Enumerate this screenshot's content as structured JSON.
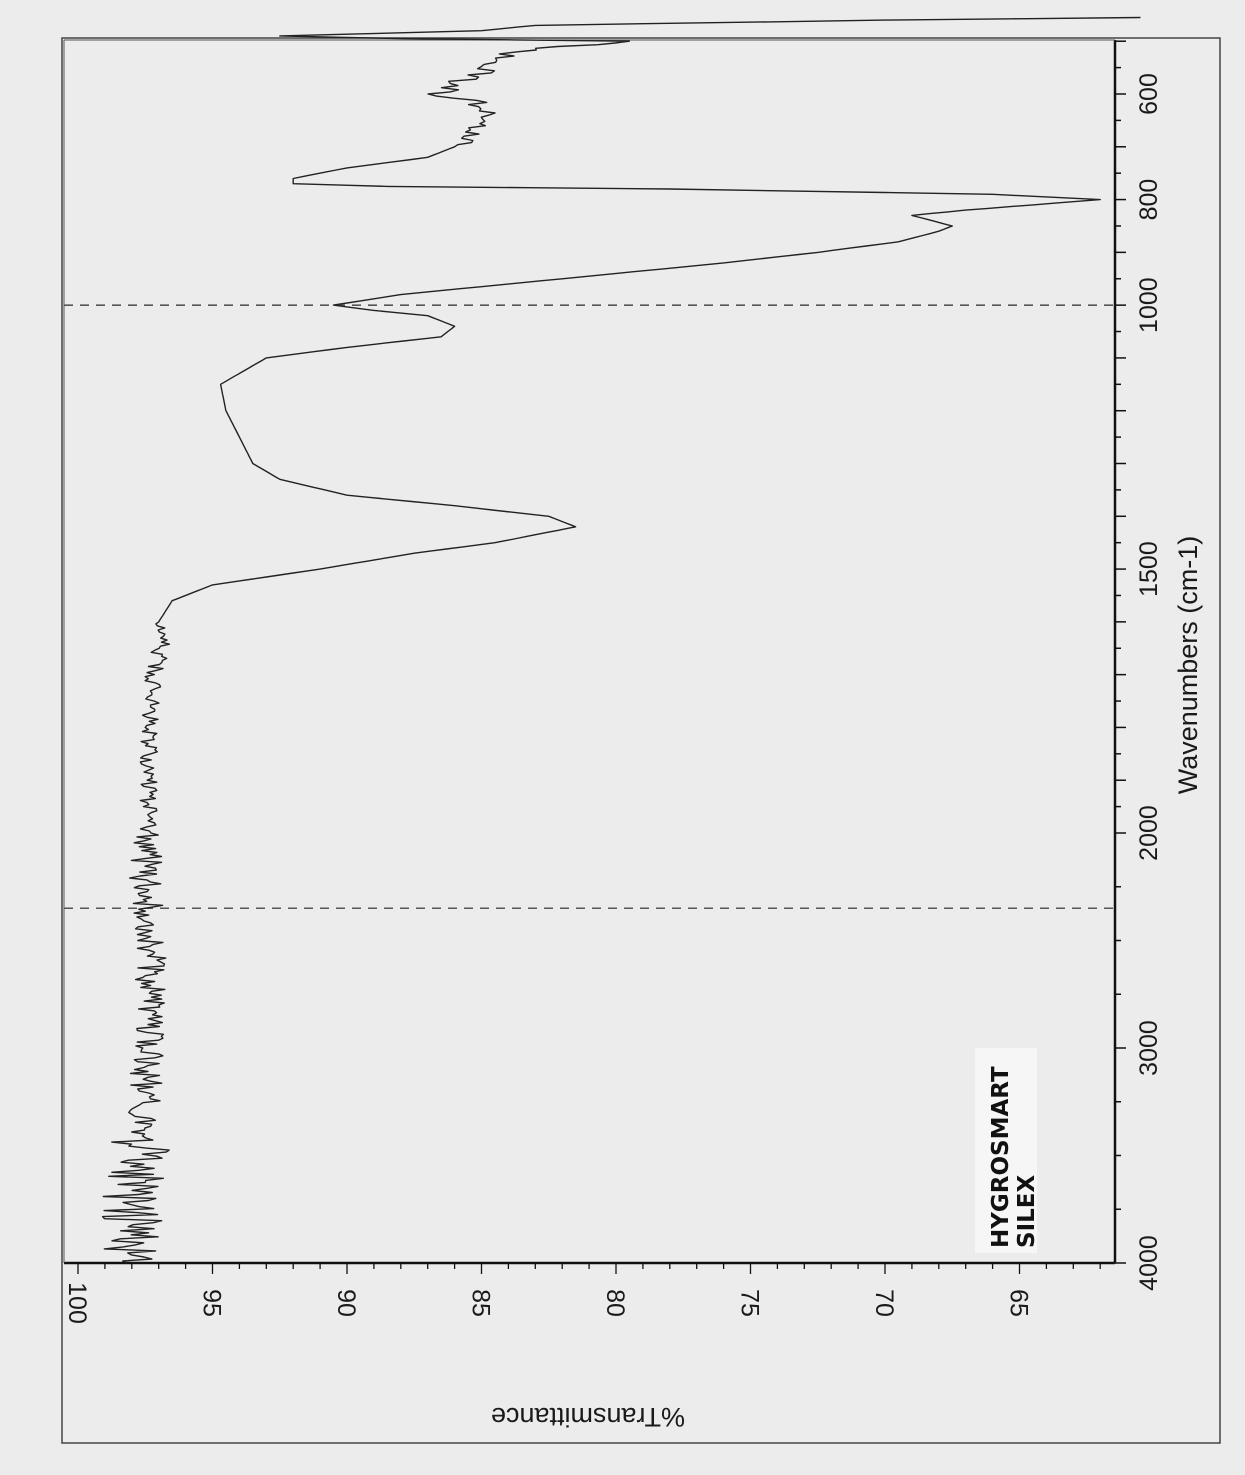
{
  "chart_data": {
    "type": "line",
    "orientation": "rotated 90° clockwise (page viewed sideways)",
    "xlabel": "Wavenumbers (cm-1)",
    "ylabel": "%Transmittance",
    "x_ticks": [
      "4000",
      "3000",
      "2000",
      "1500",
      "1000",
      "800",
      "600"
    ],
    "y_ticks": [
      "100",
      "95",
      "90",
      "85",
      "80",
      "75",
      "70",
      "65"
    ],
    "xlim": [
      4000,
      450
    ],
    "ylim": [
      61.5,
      100.5
    ],
    "grid": false,
    "reference_lines_x": [
      2350,
      1000
    ],
    "annotation": [
      "HYGROSMART",
      "SILEX"
    ],
    "series": [
      {
        "values": [
          [
            4000,
            98.2
          ],
          [
            3850,
            98.0
          ],
          [
            3700,
            97.9
          ],
          [
            3550,
            97.8
          ],
          [
            3400,
            97.6
          ],
          [
            3200,
            97.5
          ],
          [
            3000,
            97.4
          ],
          [
            2800,
            97.4
          ],
          [
            2600,
            97.3
          ],
          [
            2400,
            97.3
          ],
          [
            2200,
            97.5
          ],
          [
            2000,
            97.4
          ],
          [
            1900,
            97.4
          ],
          [
            1800,
            97.3
          ],
          [
            1700,
            97.2
          ],
          [
            1650,
            96.9
          ],
          [
            1600,
            97.0
          ],
          [
            1560,
            96.5
          ],
          [
            1530,
            95.0
          ],
          [
            1500,
            91.0
          ],
          [
            1470,
            87.5
          ],
          [
            1450,
            84.5
          ],
          [
            1430,
            82.5
          ],
          [
            1420,
            81.5
          ],
          [
            1400,
            82.5
          ],
          [
            1380,
            86.0
          ],
          [
            1360,
            90.0
          ],
          [
            1330,
            92.5
          ],
          [
            1300,
            93.5
          ],
          [
            1250,
            94.0
          ],
          [
            1200,
            94.5
          ],
          [
            1150,
            94.7
          ],
          [
            1100,
            93.0
          ],
          [
            1080,
            90.0
          ],
          [
            1060,
            86.5
          ],
          [
            1040,
            86.0
          ],
          [
            1020,
            87.0
          ],
          [
            1010,
            89.0
          ],
          [
            1000,
            90.5
          ],
          [
            980,
            88.0
          ],
          [
            950,
            82.0
          ],
          [
            920,
            76.0
          ],
          [
            900,
            72.5
          ],
          [
            880,
            69.5
          ],
          [
            860,
            68.0
          ],
          [
            850,
            67.5
          ],
          [
            830,
            69.0
          ],
          [
            820,
            67.0
          ],
          [
            810,
            64.5
          ],
          [
            800,
            62.0
          ],
          [
            790,
            66.0
          ],
          [
            780,
            78.0
          ],
          [
            775,
            88.5
          ],
          [
            770,
            92.0
          ],
          [
            760,
            92.0
          ],
          [
            740,
            90.0
          ],
          [
            720,
            87.0
          ],
          [
            700,
            86.0
          ],
          [
            680,
            85.5
          ],
          [
            660,
            85.0
          ],
          [
            640,
            84.5
          ],
          [
            620,
            85.0
          ],
          [
            600,
            86.5
          ],
          [
            580,
            86.0
          ],
          [
            560,
            85.0
          ],
          [
            540,
            84.5
          ],
          [
            520,
            84.0
          ],
          [
            510,
            82.0
          ],
          [
            500,
            79.5
          ],
          [
            495,
            88.0
          ],
          [
            490,
            92.5
          ],
          [
            480,
            85.0
          ],
          [
            470,
            83.0
          ],
          [
            460,
            70.0
          ],
          [
            455,
            60.5
          ]
        ]
      }
    ]
  }
}
